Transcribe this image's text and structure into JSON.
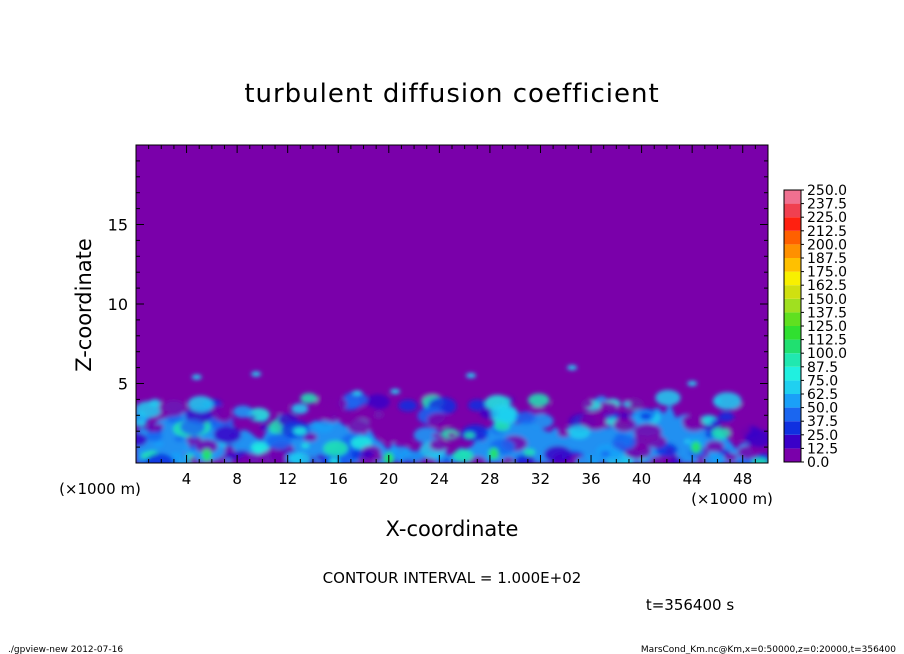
{
  "chart_data": {
    "type": "heatmap",
    "title": "turbulent diffusion coefficient",
    "xlabel": "X-coordinate",
    "ylabel": "Z-coordinate",
    "x_unit": "(×1000 m)",
    "y_unit": "(×1000 m)",
    "xlim": [
      0,
      50
    ],
    "ylim": [
      0,
      20
    ],
    "x_ticks": [
      4,
      8,
      12,
      16,
      20,
      24,
      28,
      32,
      36,
      40,
      44,
      48
    ],
    "y_ticks": [
      5,
      10,
      15
    ],
    "colorbar": {
      "levels": [
        "0.0",
        "12.5",
        "25.0",
        "37.5",
        "50.0",
        "62.5",
        "75.0",
        "87.5",
        "100.0",
        "112.5",
        "125.0",
        "137.5",
        "150.0",
        "162.5",
        "175.0",
        "187.5",
        "200.0",
        "212.5",
        "225.0",
        "237.5",
        "250.0"
      ],
      "colors": [
        "#7a00aa",
        "#3a00c8",
        "#1030e0",
        "#1a66f0",
        "#1aa0f8",
        "#20d0f0",
        "#20f0e0",
        "#20e8b0",
        "#20e070",
        "#30e030",
        "#60e020",
        "#a0e020",
        "#d0e010",
        "#f8f000",
        "#ffc000",
        "#ff9000",
        "#ff6000",
        "#ff2010",
        "#f04050",
        "#f07090"
      ]
    },
    "background_value_color": "#7a00aa",
    "turbulent_layer_top_km": 3.5,
    "contour_interval": "CONTOUR INTERVAL = 1.000E+02",
    "time_label": "t=356400 s"
  },
  "footer": {
    "left": "./gpview-new  2012-07-16",
    "right": "MarsCond_Km.nc@Km,x=0:50000,z=0:20000,t=356400"
  }
}
